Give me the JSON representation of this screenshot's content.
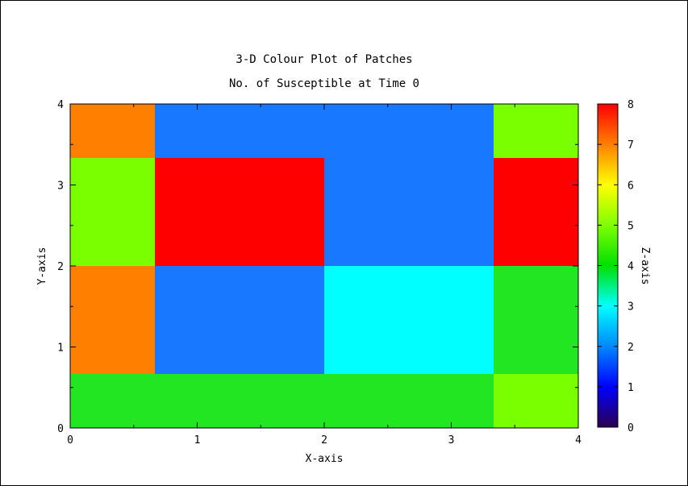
{
  "chart_data": {
    "type": "heatmap",
    "title": "3-D Colour Plot of Patches",
    "subtitle": "No. of Susceptible at Time 0",
    "xlabel": "X-axis",
    "ylabel": "Y-axis",
    "zlabel": "Z-axis",
    "xlim": [
      0,
      4
    ],
    "ylim": [
      0,
      4
    ],
    "zlim": [
      0,
      8
    ],
    "x_ticks": [
      "0",
      "1",
      "2",
      "3",
      "4"
    ],
    "y_ticks": [
      "0",
      "1",
      "2",
      "3",
      "4"
    ],
    "z_ticks": [
      "0",
      "1",
      "2",
      "3",
      "4",
      "5",
      "6",
      "7",
      "8"
    ],
    "x_edges": [
      0,
      0.6667,
      2,
      3.3333,
      4
    ],
    "y_edges": [
      0,
      0.6667,
      2,
      3.3333,
      4
    ],
    "z_rows_bottom_to_top": [
      [
        4,
        4,
        4,
        5
      ],
      [
        7,
        2,
        3,
        4
      ],
      [
        5,
        8,
        2,
        8
      ],
      [
        7,
        2,
        2,
        5
      ]
    ],
    "colorbar_colors": [
      "#2a0050",
      "#0000ff",
      "#0088ff",
      "#00ffff",
      "#00e000",
      "#7fff00",
      "#ffff00",
      "#ff8000",
      "#ff0000"
    ],
    "cell_colors": {
      "2": "#1878ff",
      "3": "#00ffff",
      "4": "#22e622",
      "5": "#7aff00",
      "7": "#ff7f00",
      "8": "#ff0000"
    }
  }
}
